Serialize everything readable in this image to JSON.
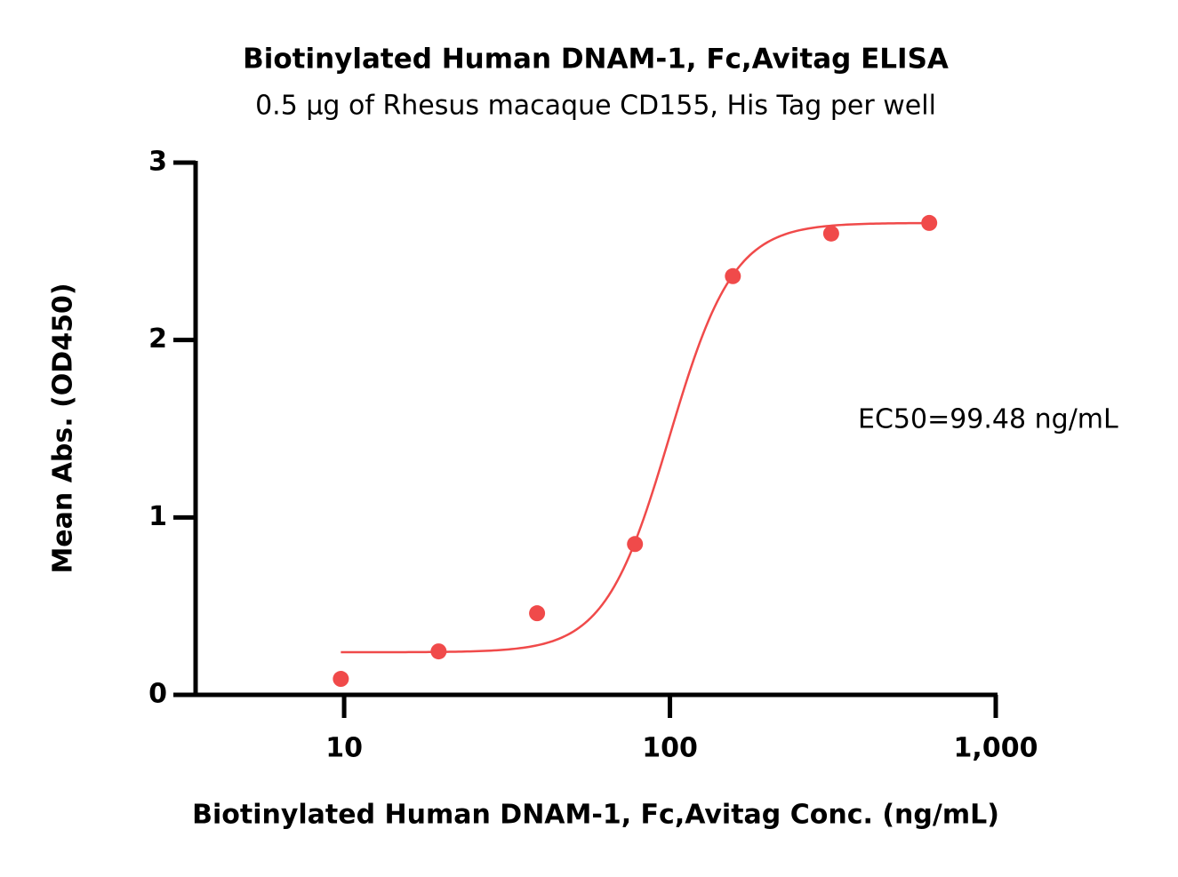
{
  "chart_data": {
    "type": "scatter",
    "title": "Biotinylated Human DNAM-1, Fc,Avitag ELISA",
    "subtitle": "0.5 µg of Rhesus macaque CD155, His Tag per well",
    "x_label": "Biotinylated Human DNAM-1, Fc,Avitag Conc. (ng/mL)",
    "y_label": "Mean Abs. (OD450)",
    "annotation": "EC50=99.48 ng/mL",
    "x": [
      9.77,
      19.5,
      39.1,
      78.1,
      156,
      312.5,
      625
    ],
    "series": [
      {
        "color": "#f04a4a",
        "values": [
          0.09,
          0.245,
          0.46,
          0.85,
          2.36,
          2.6,
          2.66
        ]
      }
    ],
    "fit": {
      "bottom": 0.24,
      "top": 2.66,
      "ec50": 99.48,
      "hill": 4.4,
      "color": "#f04a4a"
    },
    "xlim": [
      3.5,
      1000
    ],
    "xscale": "log",
    "xticks": [
      10,
      100,
      {
        "value": 1000,
        "label": "1,000"
      }
    ],
    "ylim": [
      0,
      3
    ],
    "yticks": [
      0,
      1,
      2,
      3
    ]
  }
}
